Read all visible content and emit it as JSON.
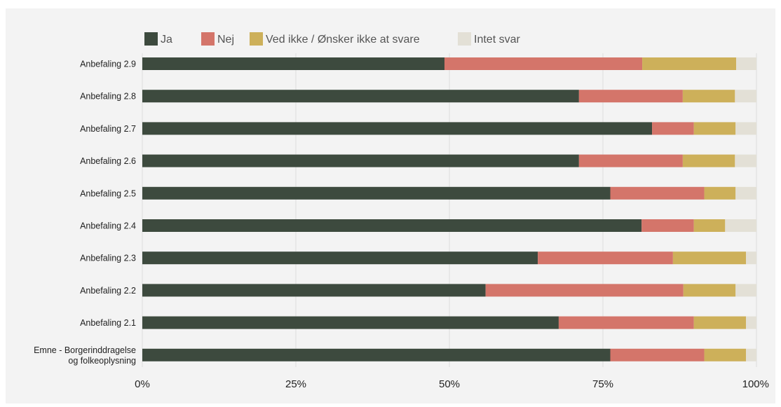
{
  "chart_data": {
    "type": "bar",
    "orientation": "horizontal",
    "stacked": true,
    "categories": [
      "Anbefaling 2.9",
      "Anbefaling 2.8",
      "Anbefaling 2.7",
      "Anbefaling 2.6",
      "Anbefaling 2.5",
      "Anbefaling 2.4",
      "Anbefaling 2.3",
      "Anbefaling 2.2",
      "Anbefaling 2.1",
      [
        "Emne - Borgerinddragelse",
        "og folkeoplysning"
      ]
    ],
    "series": [
      {
        "name": "Ja",
        "color": "#3d4a3e",
        "values": [
          49.2,
          71.1,
          83.0,
          71.1,
          76.2,
          81.3,
          64.4,
          55.9,
          67.8,
          76.2
        ]
      },
      {
        "name": "Nej",
        "color": "#d4756a",
        "values": [
          32.2,
          16.9,
          6.8,
          16.9,
          15.3,
          8.5,
          22.0,
          32.2,
          22.0,
          15.3
        ]
      },
      {
        "name": "Ved ikke / Ønsker ikke at svare",
        "color": "#cdb05a",
        "values": [
          15.3,
          8.5,
          6.8,
          8.5,
          5.1,
          5.1,
          11.9,
          8.5,
          8.5,
          6.8
        ]
      },
      {
        "name": "Intet svar",
        "color": "#e3e0d6",
        "values": [
          3.3,
          3.5,
          3.4,
          3.5,
          3.4,
          5.1,
          1.7,
          3.4,
          1.7,
          1.7
        ]
      }
    ],
    "x_ticks": [
      "0%",
      "25%",
      "50%",
      "75%",
      "100%"
    ],
    "xlim": [
      0,
      100
    ],
    "grid": true,
    "legend_position": "top-left"
  }
}
